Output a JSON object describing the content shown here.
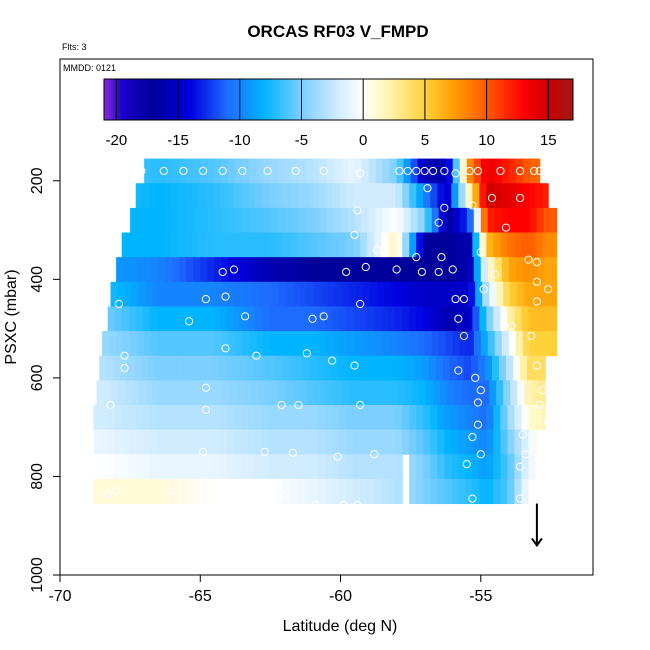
{
  "chart_data": {
    "type": "heatmap",
    "title": "ORCAS RF03 V_FMPD",
    "annotations": {
      "flights": "Flts: 3",
      "date": "MMDD: 0121"
    },
    "xlabel": "Latitude (deg N)",
    "ylabel": "PSXC (mbar)",
    "xlim": [
      -70,
      -51
    ],
    "ylim": [
      1000,
      100
    ],
    "x_ticks": [
      -70,
      -65,
      -60,
      -55
    ],
    "x_tick_labels": [
      "-70",
      "-65",
      "-60",
      "-55"
    ],
    "y_ticks": [
      200,
      400,
      600,
      800,
      1000
    ],
    "y_tick_labels": [
      "200",
      "400",
      "600",
      "800",
      "1000"
    ],
    "y_reversed": true,
    "colorbar": {
      "range": [
        -21,
        17
      ],
      "ticks": [
        -20,
        -15,
        -10,
        -5,
        0,
        5,
        10,
        15
      ],
      "tick_labels": [
        "-20",
        "-15",
        "-10",
        "-5",
        "0",
        "5",
        "10",
        "15"
      ],
      "stops": [
        {
          "v": -21,
          "c": "#8a2be2"
        },
        {
          "v": -19.5,
          "c": "#1a00cc"
        },
        {
          "v": -17,
          "c": "#00009a"
        },
        {
          "v": -14,
          "c": "#0000e0"
        },
        {
          "v": -11,
          "c": "#1e6cff"
        },
        {
          "v": -8,
          "c": "#00b4ff"
        },
        {
          "v": -5,
          "c": "#7ccfff"
        },
        {
          "v": -2,
          "c": "#d2ecff"
        },
        {
          "v": 0,
          "c": "#ffffff"
        },
        {
          "v": 2,
          "c": "#fff4b0"
        },
        {
          "v": 5,
          "c": "#ffd23a"
        },
        {
          "v": 7.5,
          "c": "#ff9a00"
        },
        {
          "v": 10,
          "c": "#ff5a00"
        },
        {
          "v": 13,
          "c": "#ff0000"
        },
        {
          "v": 15,
          "c": "#cc0000"
        },
        {
          "v": 17,
          "c": "#a01818"
        }
      ]
    },
    "pressure_levels": [
      180,
      230,
      280,
      330,
      380,
      430,
      480,
      530,
      580,
      630,
      680,
      730,
      780,
      830
    ],
    "level_extents": [
      [
        -67.0,
        -52.9
      ],
      [
        -67.3,
        -52.6
      ],
      [
        -67.5,
        -52.3
      ],
      [
        -67.8,
        -52.3
      ],
      [
        -68.0,
        -52.3
      ],
      [
        -68.2,
        -52.3
      ],
      [
        -68.3,
        -52.3
      ],
      [
        -68.5,
        -52.3
      ],
      [
        -68.6,
        -52.7
      ],
      [
        -68.7,
        -52.7
      ],
      [
        -68.8,
        -52.7
      ],
      [
        -68.8,
        -53.0
      ],
      [
        -68.8,
        -53.0
      ],
      [
        -68.8,
        -53.2
      ]
    ],
    "gaps": [
      {
        "level": 780,
        "lat": [
          -57.8,
          -57.5
        ]
      },
      {
        "level": 830,
        "lat": [
          -57.8,
          -57.5
        ]
      }
    ],
    "wind_profiles": [
      {
        "lat": -68.5,
        "v": [
          -6,
          -7,
          -8,
          -8,
          -9,
          -7,
          -5,
          -4,
          -3,
          -2,
          -2,
          -1,
          0,
          1
        ]
      },
      {
        "lat": -66.5,
        "v": [
          -7,
          -8,
          -8,
          -8,
          -10,
          -10,
          -8,
          -6,
          -5,
          -4,
          -3,
          -2,
          -1,
          1
        ]
      },
      {
        "lat": -64.5,
        "v": [
          -6,
          -7,
          -7,
          -7,
          -13,
          -10,
          -8,
          -6,
          -5,
          -4,
          -3,
          -2,
          -1,
          0
        ]
      },
      {
        "lat": -62.5,
        "v": [
          -4,
          -5,
          -6,
          -7,
          -16,
          -11,
          -11,
          -8,
          -6,
          -5,
          -4,
          -3,
          -2,
          0
        ]
      },
      {
        "lat": -61.0,
        "v": [
          -3,
          -4,
          -5,
          -6,
          -17,
          -12,
          -11,
          -8,
          -7,
          -6,
          -4,
          -3,
          -2,
          -1
        ]
      },
      {
        "lat": -59.5,
        "v": [
          -1,
          -2,
          -3,
          -5,
          -17,
          -13,
          -12,
          -9,
          -8,
          -7,
          -5,
          -4,
          -3,
          -2
        ]
      },
      {
        "lat": -58.0,
        "v": [
          -5,
          -2,
          0,
          2,
          -17,
          -14,
          -13,
          -10,
          -8,
          -7,
          -5,
          -4,
          -3,
          -3
        ]
      },
      {
        "lat": -57.0,
        "v": [
          -16,
          -10,
          -5,
          -17,
          -17,
          -15,
          -14,
          -11,
          -9,
          -8,
          -7,
          -6,
          -5,
          -5
        ]
      },
      {
        "lat": -56.2,
        "v": [
          -16,
          -15,
          -17,
          -17,
          -17,
          -15,
          -16,
          -12,
          -11,
          -10,
          -9,
          -8,
          -7,
          -6
        ]
      },
      {
        "lat": -55.4,
        "v": [
          8,
          2,
          -12,
          -16,
          -16,
          -15,
          -15,
          -13,
          -12,
          -11,
          -10,
          -9,
          -8,
          -7
        ]
      },
      {
        "lat": -54.8,
        "v": [
          14,
          15,
          12,
          6,
          0,
          -3,
          -6,
          -8,
          -10,
          -11,
          -11,
          -10,
          -9,
          -8
        ]
      },
      {
        "lat": -54.0,
        "v": [
          12,
          14,
          13,
          9,
          7,
          5,
          2,
          -1,
          -3,
          -4,
          -4,
          -5,
          -6,
          -6
        ]
      },
      {
        "lat": -53.3,
        "v": [
          10,
          13,
          13,
          10,
          8,
          7,
          6,
          5,
          4,
          2,
          1,
          -1,
          -1,
          0
        ]
      },
      {
        "lat": -52.6,
        "v": [
          9,
          12,
          10,
          8,
          7,
          7,
          6,
          5,
          4,
          3,
          2,
          2,
          1,
          1
        ]
      }
    ],
    "marker_points": [
      [
        -67.1,
        180
      ],
      [
        -66.3,
        180
      ],
      [
        -65.6,
        180
      ],
      [
        -64.9,
        180
      ],
      [
        -64.2,
        180
      ],
      [
        -63.5,
        180
      ],
      [
        -62.6,
        180
      ],
      [
        -61.6,
        180
      ],
      [
        -60.6,
        180
      ],
      [
        -59.3,
        185
      ],
      [
        -57.9,
        180
      ],
      [
        -57.6,
        180
      ],
      [
        -57.3,
        180
      ],
      [
        -57.0,
        180
      ],
      [
        -56.7,
        180
      ],
      [
        -56.3,
        180
      ],
      [
        -55.9,
        185
      ],
      [
        -55.4,
        180
      ],
      [
        -55.1,
        180
      ],
      [
        -54.3,
        180
      ],
      [
        -53.6,
        180
      ],
      [
        -53.1,
        180
      ],
      [
        -52.9,
        180
      ],
      [
        -56.9,
        215
      ],
      [
        -54.6,
        235
      ],
      [
        -53.6,
        235
      ],
      [
        -56.3,
        255
      ],
      [
        -55.3,
        250
      ],
      [
        -59.4,
        260
      ],
      [
        -56.5,
        285
      ],
      [
        -54.1,
        295
      ],
      [
        -59.5,
        310
      ],
      [
        -58.7,
        340
      ],
      [
        -57.3,
        355
      ],
      [
        -56.4,
        355
      ],
      [
        -55.0,
        345
      ],
      [
        -53.3,
        360
      ],
      [
        -53.0,
        365
      ],
      [
        -64.2,
        385
      ],
      [
        -63.8,
        380
      ],
      [
        -59.8,
        385
      ],
      [
        -59.1,
        375
      ],
      [
        -58.0,
        380
      ],
      [
        -57.1,
        385
      ],
      [
        -56.5,
        385
      ],
      [
        -56.0,
        380
      ],
      [
        -54.5,
        390
      ],
      [
        -53.0,
        405
      ],
      [
        -54.9,
        420
      ],
      [
        -52.6,
        420
      ],
      [
        -64.8,
        440
      ],
      [
        -64.1,
        435
      ],
      [
        -59.3,
        450
      ],
      [
        -55.9,
        440
      ],
      [
        -55.6,
        440
      ],
      [
        -53.0,
        445
      ],
      [
        -67.9,
        450
      ],
      [
        -65.4,
        485
      ],
      [
        -63.4,
        475
      ],
      [
        -61.0,
        480
      ],
      [
        -60.6,
        475
      ],
      [
        -55.8,
        480
      ],
      [
        -55.6,
        515
      ],
      [
        -53.9,
        495
      ],
      [
        -53.2,
        515
      ],
      [
        -64.1,
        540
      ],
      [
        -63.0,
        555
      ],
      [
        -61.2,
        550
      ],
      [
        -67.7,
        555
      ],
      [
        -60.3,
        565
      ],
      [
        -59.5,
        575
      ],
      [
        -55.8,
        585
      ],
      [
        -53.0,
        575
      ],
      [
        -55.2,
        600
      ],
      [
        -67.7,
        580
      ],
      [
        -64.8,
        620
      ],
      [
        -55.0,
        625
      ],
      [
        -52.8,
        625
      ],
      [
        -52.9,
        655
      ],
      [
        -68.2,
        655
      ],
      [
        -62.1,
        655
      ],
      [
        -61.5,
        655
      ],
      [
        -59.3,
        655
      ],
      [
        -55.1,
        650
      ],
      [
        -52.6,
        690
      ],
      [
        -64.8,
        665
      ],
      [
        -55.1,
        695
      ],
      [
        -55.3,
        720
      ],
      [
        -53.5,
        715
      ],
      [
        -68.5,
        770
      ],
      [
        -64.9,
        750
      ],
      [
        -62.7,
        750
      ],
      [
        -61.7,
        752
      ],
      [
        -60.1,
        760
      ],
      [
        -58.8,
        755
      ],
      [
        -55.0,
        755
      ],
      [
        -53.4,
        755
      ],
      [
        -55.5,
        775
      ],
      [
        -53.6,
        780
      ],
      [
        -68.3,
        835
      ],
      [
        -68.0,
        830
      ],
      [
        -66.0,
        830
      ],
      [
        -64.7,
        825
      ],
      [
        -63.1,
        840
      ],
      [
        -62.0,
        840
      ],
      [
        -60.9,
        858
      ],
      [
        -59.4,
        858
      ],
      [
        -59.9,
        858
      ],
      [
        -55.3,
        845
      ],
      [
        -53.6,
        845
      ]
    ],
    "arrow": {
      "lat": -53.0,
      "p_start": 855,
      "p_end": 940
    }
  }
}
